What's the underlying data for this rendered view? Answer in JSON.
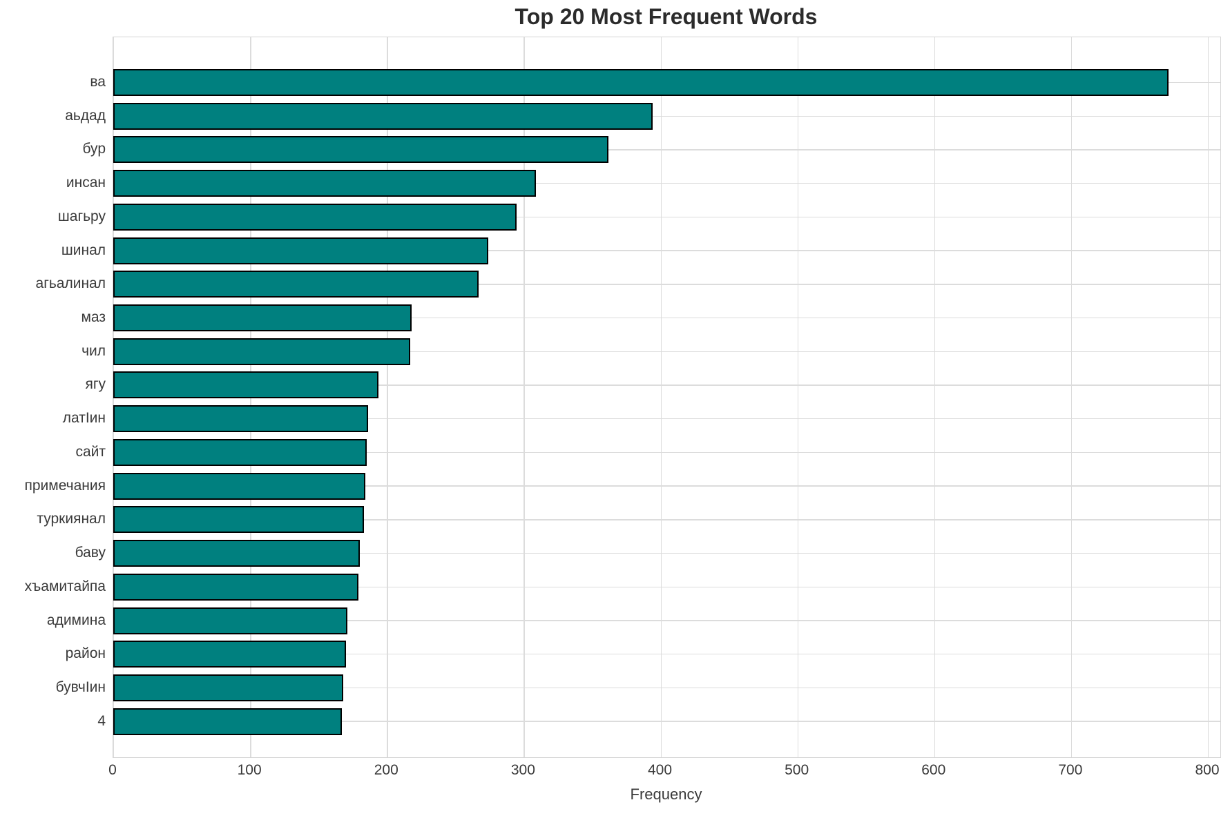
{
  "chart_data": {
    "type": "bar",
    "orientation": "horizontal",
    "title": "Top 20 Most Frequent Words",
    "xlabel": "Frequency",
    "ylabel": "",
    "categories": [
      "ва",
      "аьдад",
      "бур",
      "инсан",
      "шагьру",
      "шинал",
      "агьалинал",
      "маз",
      "чил",
      "ягу",
      "латIин",
      "сайт",
      "примечания",
      "туркиянал",
      "баву",
      "хъамитайпа",
      "адимина",
      "район",
      "бувчIин",
      "4"
    ],
    "values": [
      771,
      394,
      362,
      309,
      295,
      274,
      267,
      218,
      217,
      194,
      186,
      185,
      184,
      183,
      180,
      179,
      171,
      170,
      168,
      167
    ],
    "xlim": [
      0,
      800
    ],
    "x_ticks": [
      0,
      100,
      200,
      300,
      400,
      500,
      600,
      700,
      800
    ],
    "grid": "on",
    "legend": "none",
    "bar_color": "#00807f",
    "bar_edge_color": "#000000",
    "grid_color": "#dcdcdc",
    "title_color": "#2b2b2b",
    "tick_label_color": "#3a3a3a"
  }
}
